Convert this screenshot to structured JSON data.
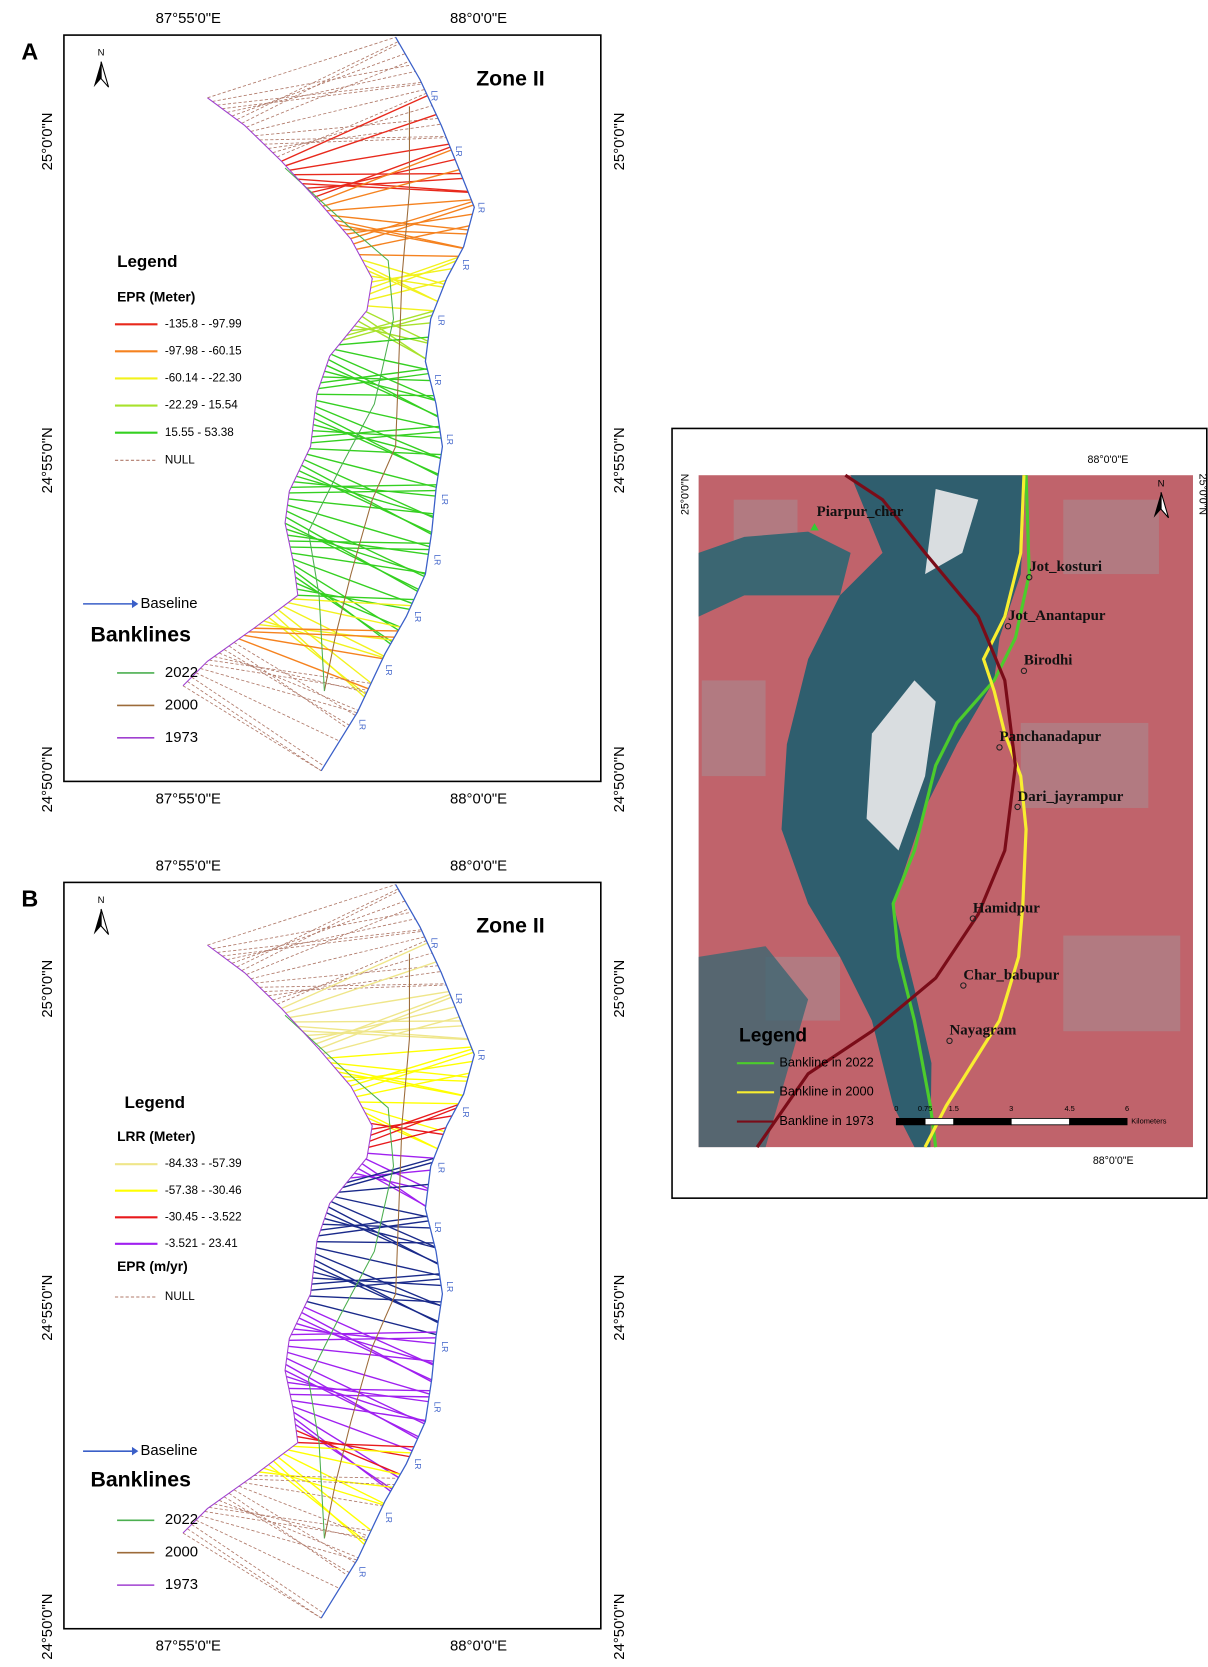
{
  "panel_a": {
    "label": "A",
    "zone": "Zone II",
    "north": "N",
    "transect_label": "LR",
    "lon_top": [
      "87°55'0\"E",
      "88°0'0\"E"
    ],
    "lon_bottom": [
      "87°55'0\"E",
      "88°0'0\"E"
    ],
    "lat_left": [
      "25°0'0\"N",
      "24°55'0\"N",
      "24°50'0\"N"
    ],
    "lat_right": [
      "25°0'0\"N",
      "24°55'0\"N",
      "24°50'0\"N"
    ],
    "legend_title": "Legend",
    "field": "EPR (Meter)",
    "classes": [
      {
        "label": "-135.8 - -97.99",
        "color": "#e8291c"
      },
      {
        "label": "-97.98 - -60.15",
        "color": "#f5821f"
      },
      {
        "label": "-60.14 - -22.30",
        "color": "#f2f21c"
      },
      {
        "label": "-22.29 - 15.54",
        "color": "#a8e22c"
      },
      {
        "label": "15.55 - 53.38",
        "color": "#35d021"
      }
    ],
    "null_label": "NULL",
    "null_color": "#b07a6a",
    "baseline": "Baseline",
    "baseline_color": "#3a5fc8",
    "banklines_title": "Banklines",
    "banklines": [
      {
        "label": "2022",
        "color": "#4caf50"
      },
      {
        "label": "2000",
        "color": "#9c6b3a"
      },
      {
        "label": "1973",
        "color": "#a040d0"
      }
    ]
  },
  "panel_b": {
    "label": "B",
    "zone": "Zone II",
    "north": "N",
    "transect_label": "LR",
    "lon_top": [
      "87°55'0\"E",
      "88°0'0\"E"
    ],
    "lon_bottom": [
      "87°55'0\"E",
      "88°0'0\"E"
    ],
    "lat_left": [
      "25°0'0\"N",
      "24°55'0\"N",
      "24°50'0\"N"
    ],
    "lat_right": [
      "25°0'0\"N",
      "24°55'0\"N",
      "24°50'0\"N"
    ],
    "legend_title": "Legend",
    "field": "LRR (Meter)",
    "field2": "EPR (m/yr)",
    "classes": [
      {
        "label": "-84.33 - -57.39",
        "color": "#efe68a"
      },
      {
        "label": "-57.38 - -30.46",
        "color": "#ffff00"
      },
      {
        "label": "-30.45 - -3.522",
        "color": "#e8191c"
      },
      {
        "label": "-3.521 - 23.41",
        "color": "#a020f0"
      },
      {
        "label": null,
        "color": "#1a2a8a"
      }
    ],
    "null_label": "NULL",
    "null_color": "#b07a6a",
    "baseline": "Baseline",
    "baseline_color": "#3a5fc8",
    "banklines_title": "Banklines",
    "banklines": [
      {
        "label": "2022",
        "color": "#4caf50"
      },
      {
        "label": "2000",
        "color": "#9c6b3a"
      },
      {
        "label": "1973",
        "color": "#a040d0"
      }
    ]
  },
  "panel_c": {
    "north": "N",
    "lon_top": "88°0'0\"E",
    "lon_bottom": "88°0'0\"E",
    "lat_left": "25°0'0\"N",
    "lat_right": "25°0'0\"N",
    "places": [
      "Piarpur_char",
      "Jot_kosturi",
      "Jot_Anantapur",
      "Birodhi",
      "Panchanadapur",
      "Dari_jayrampur",
      "Hamidpur",
      "Char_babupur",
      "Nayagram"
    ],
    "legend_title": "Legend",
    "banklines": [
      {
        "label": "Bankline in 2022",
        "color": "#4ccc2c"
      },
      {
        "label": "Bankline in 2000",
        "color": "#f8ee30"
      },
      {
        "label": "Bankline in 1973",
        "color": "#7a0c18"
      }
    ],
    "scale_ticks": [
      "0",
      "0.75",
      "1.5",
      "3",
      "4.5",
      "6"
    ],
    "scale_unit": "Kilometers"
  }
}
